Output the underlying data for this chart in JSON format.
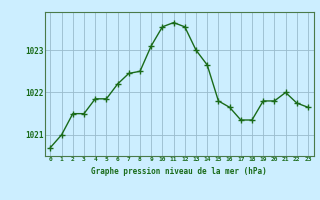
{
  "x": [
    0,
    1,
    2,
    3,
    4,
    5,
    6,
    7,
    8,
    9,
    10,
    11,
    12,
    13,
    14,
    15,
    16,
    17,
    18,
    19,
    20,
    21,
    22,
    23
  ],
  "y": [
    1020.7,
    1021.0,
    1021.5,
    1021.5,
    1021.85,
    1021.85,
    1022.2,
    1022.45,
    1022.5,
    1023.1,
    1023.55,
    1023.65,
    1023.55,
    1023.0,
    1022.65,
    1021.8,
    1021.65,
    1021.35,
    1021.35,
    1021.8,
    1021.8,
    1022.0,
    1021.75,
    1021.65
  ],
  "xlabel": "Graphe pression niveau de la mer (hPa)",
  "ylim": [
    1020.5,
    1023.9
  ],
  "yticks": [
    1021,
    1022,
    1023
  ],
  "xticks": [
    0,
    1,
    2,
    3,
    4,
    5,
    6,
    7,
    8,
    9,
    10,
    11,
    12,
    13,
    14,
    15,
    16,
    17,
    18,
    19,
    20,
    21,
    22,
    23
  ],
  "line_color": "#1a6b1a",
  "marker_color": "#1a6b1a",
  "bg_color": "#cceeff",
  "grid_color": "#99bbcc",
  "xlabel_color": "#1a6b1a",
  "tick_color": "#1a6b1a",
  "border_color": "#4a7a4a"
}
